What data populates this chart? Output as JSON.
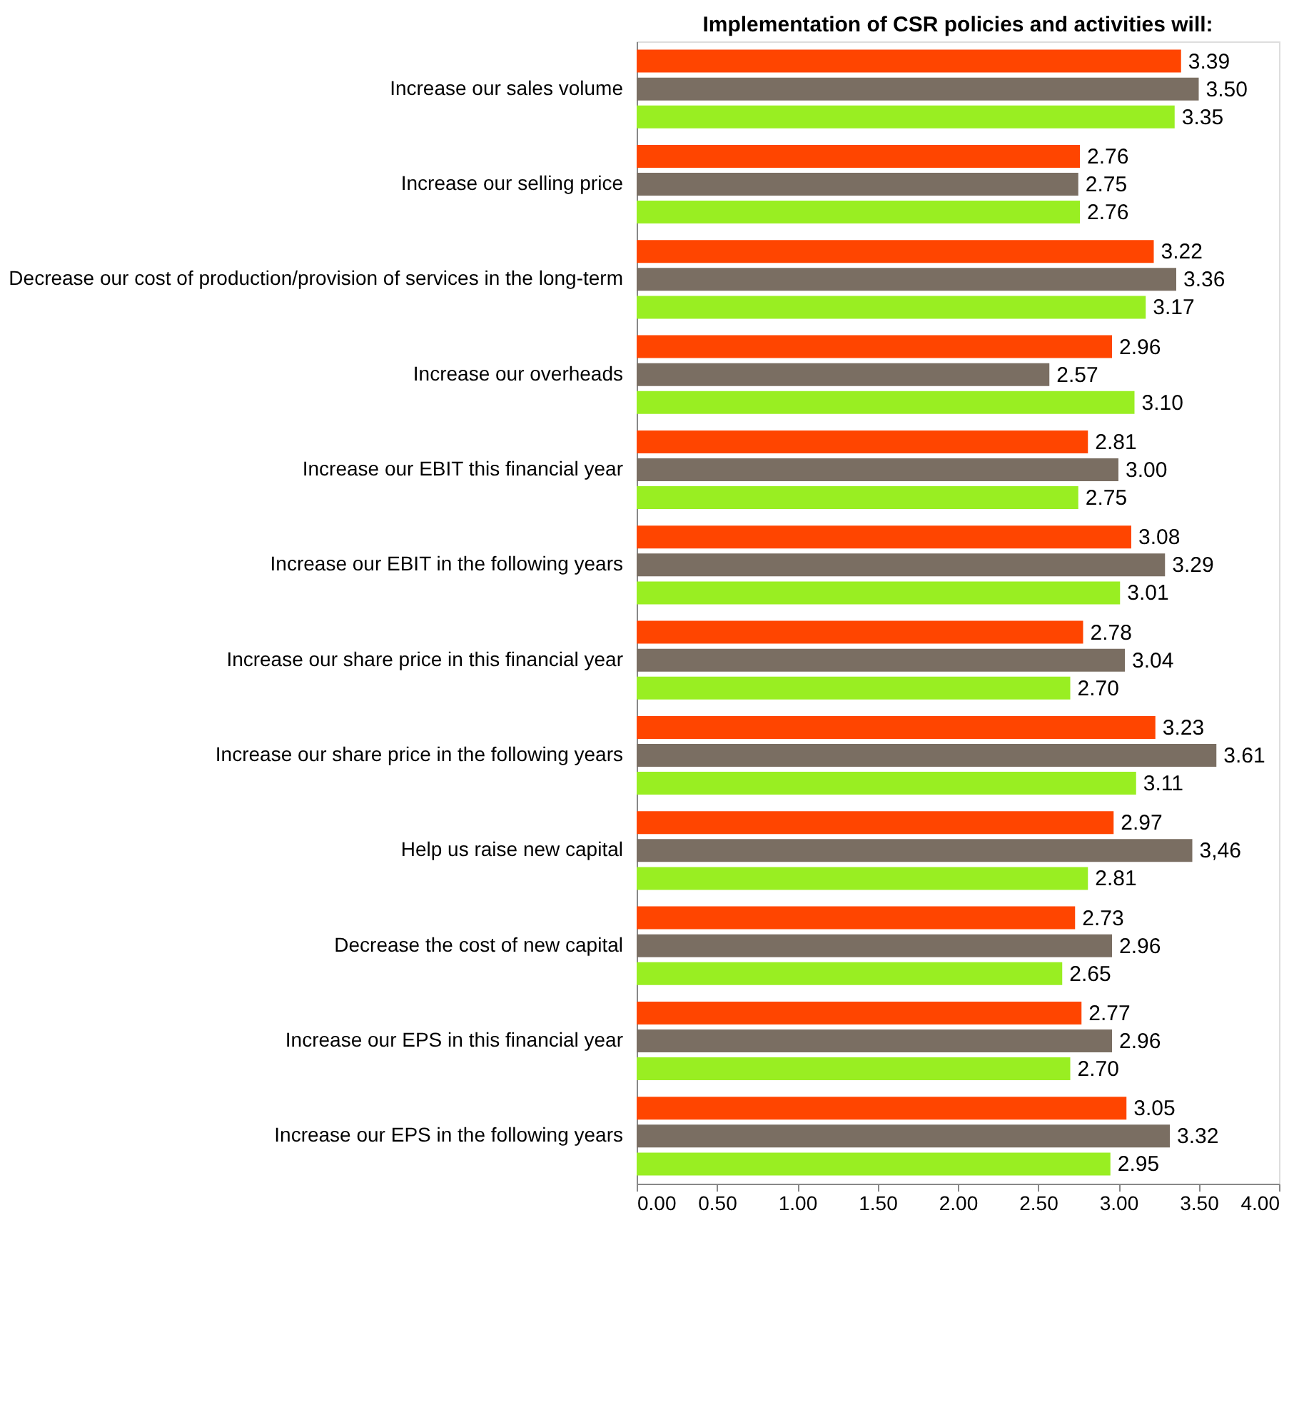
{
  "chart_data": {
    "type": "bar",
    "orientation": "horizontal",
    "title": "Implementation of CSR policies and activities will:",
    "categories": [
      "Increase our sales volume",
      "Increase our selling price",
      "Decrease our cost of production/provision of services in the long-term",
      "Increase our overheads",
      "Increase our EBIT this financial year",
      "Increase our EBIT in the following years",
      "Increase our share price in this financial year",
      "Increase our share price in the following years",
      "Help us raise new capital",
      "Decrease the cost of new capital",
      "Increase our EPS in this financial year",
      "Increase our EPS in the following years"
    ],
    "series": [
      {
        "color": "#ff4500",
        "values": [
          3.39,
          2.76,
          3.22,
          2.96,
          2.81,
          3.08,
          2.78,
          3.23,
          2.97,
          2.73,
          2.77,
          3.05
        ],
        "value_labels": [
          "3.39",
          "2.76",
          "3.22",
          "2.96",
          "2.81",
          "3.08",
          "2.78",
          "3.23",
          "2.97",
          "2.73",
          "2.77",
          "3.05"
        ]
      },
      {
        "color": "#7a6e62",
        "values": [
          3.5,
          2.75,
          3.36,
          2.57,
          3.0,
          3.29,
          3.04,
          3.61,
          3.46,
          2.96,
          2.96,
          3.32
        ],
        "value_labels": [
          "3.50",
          "2.75",
          "3.36",
          "2.57",
          "3.00",
          "3.29",
          "3.04",
          "3.61",
          "3,46",
          "2.96",
          "2.96",
          "3.32"
        ]
      },
      {
        "color": "#99ee22",
        "values": [
          3.35,
          2.76,
          3.17,
          3.1,
          2.75,
          3.01,
          2.7,
          3.11,
          2.81,
          2.65,
          2.7,
          2.95
        ],
        "value_labels": [
          "3.35",
          "2.76",
          "3.17",
          "3.10",
          "2.75",
          "3.01",
          "2.70",
          "3.11",
          "2.81",
          "2.65",
          "2.70",
          "2.95"
        ]
      }
    ],
    "xlim": [
      0,
      4
    ],
    "xticks": [
      {
        "value": 0,
        "label": "0.00"
      },
      {
        "value": 0.5,
        "label": "0.50"
      },
      {
        "value": 1,
        "label": "1.00"
      },
      {
        "value": 1.5,
        "label": "1.50"
      },
      {
        "value": 2,
        "label": "2.00"
      },
      {
        "value": 2.5,
        "label": "2.50"
      },
      {
        "value": 3,
        "label": "3.00"
      },
      {
        "value": 3.5,
        "label": "3.50"
      },
      {
        "value": 4,
        "label": "4.00"
      }
    ],
    "grid": false,
    "legend": false
  }
}
